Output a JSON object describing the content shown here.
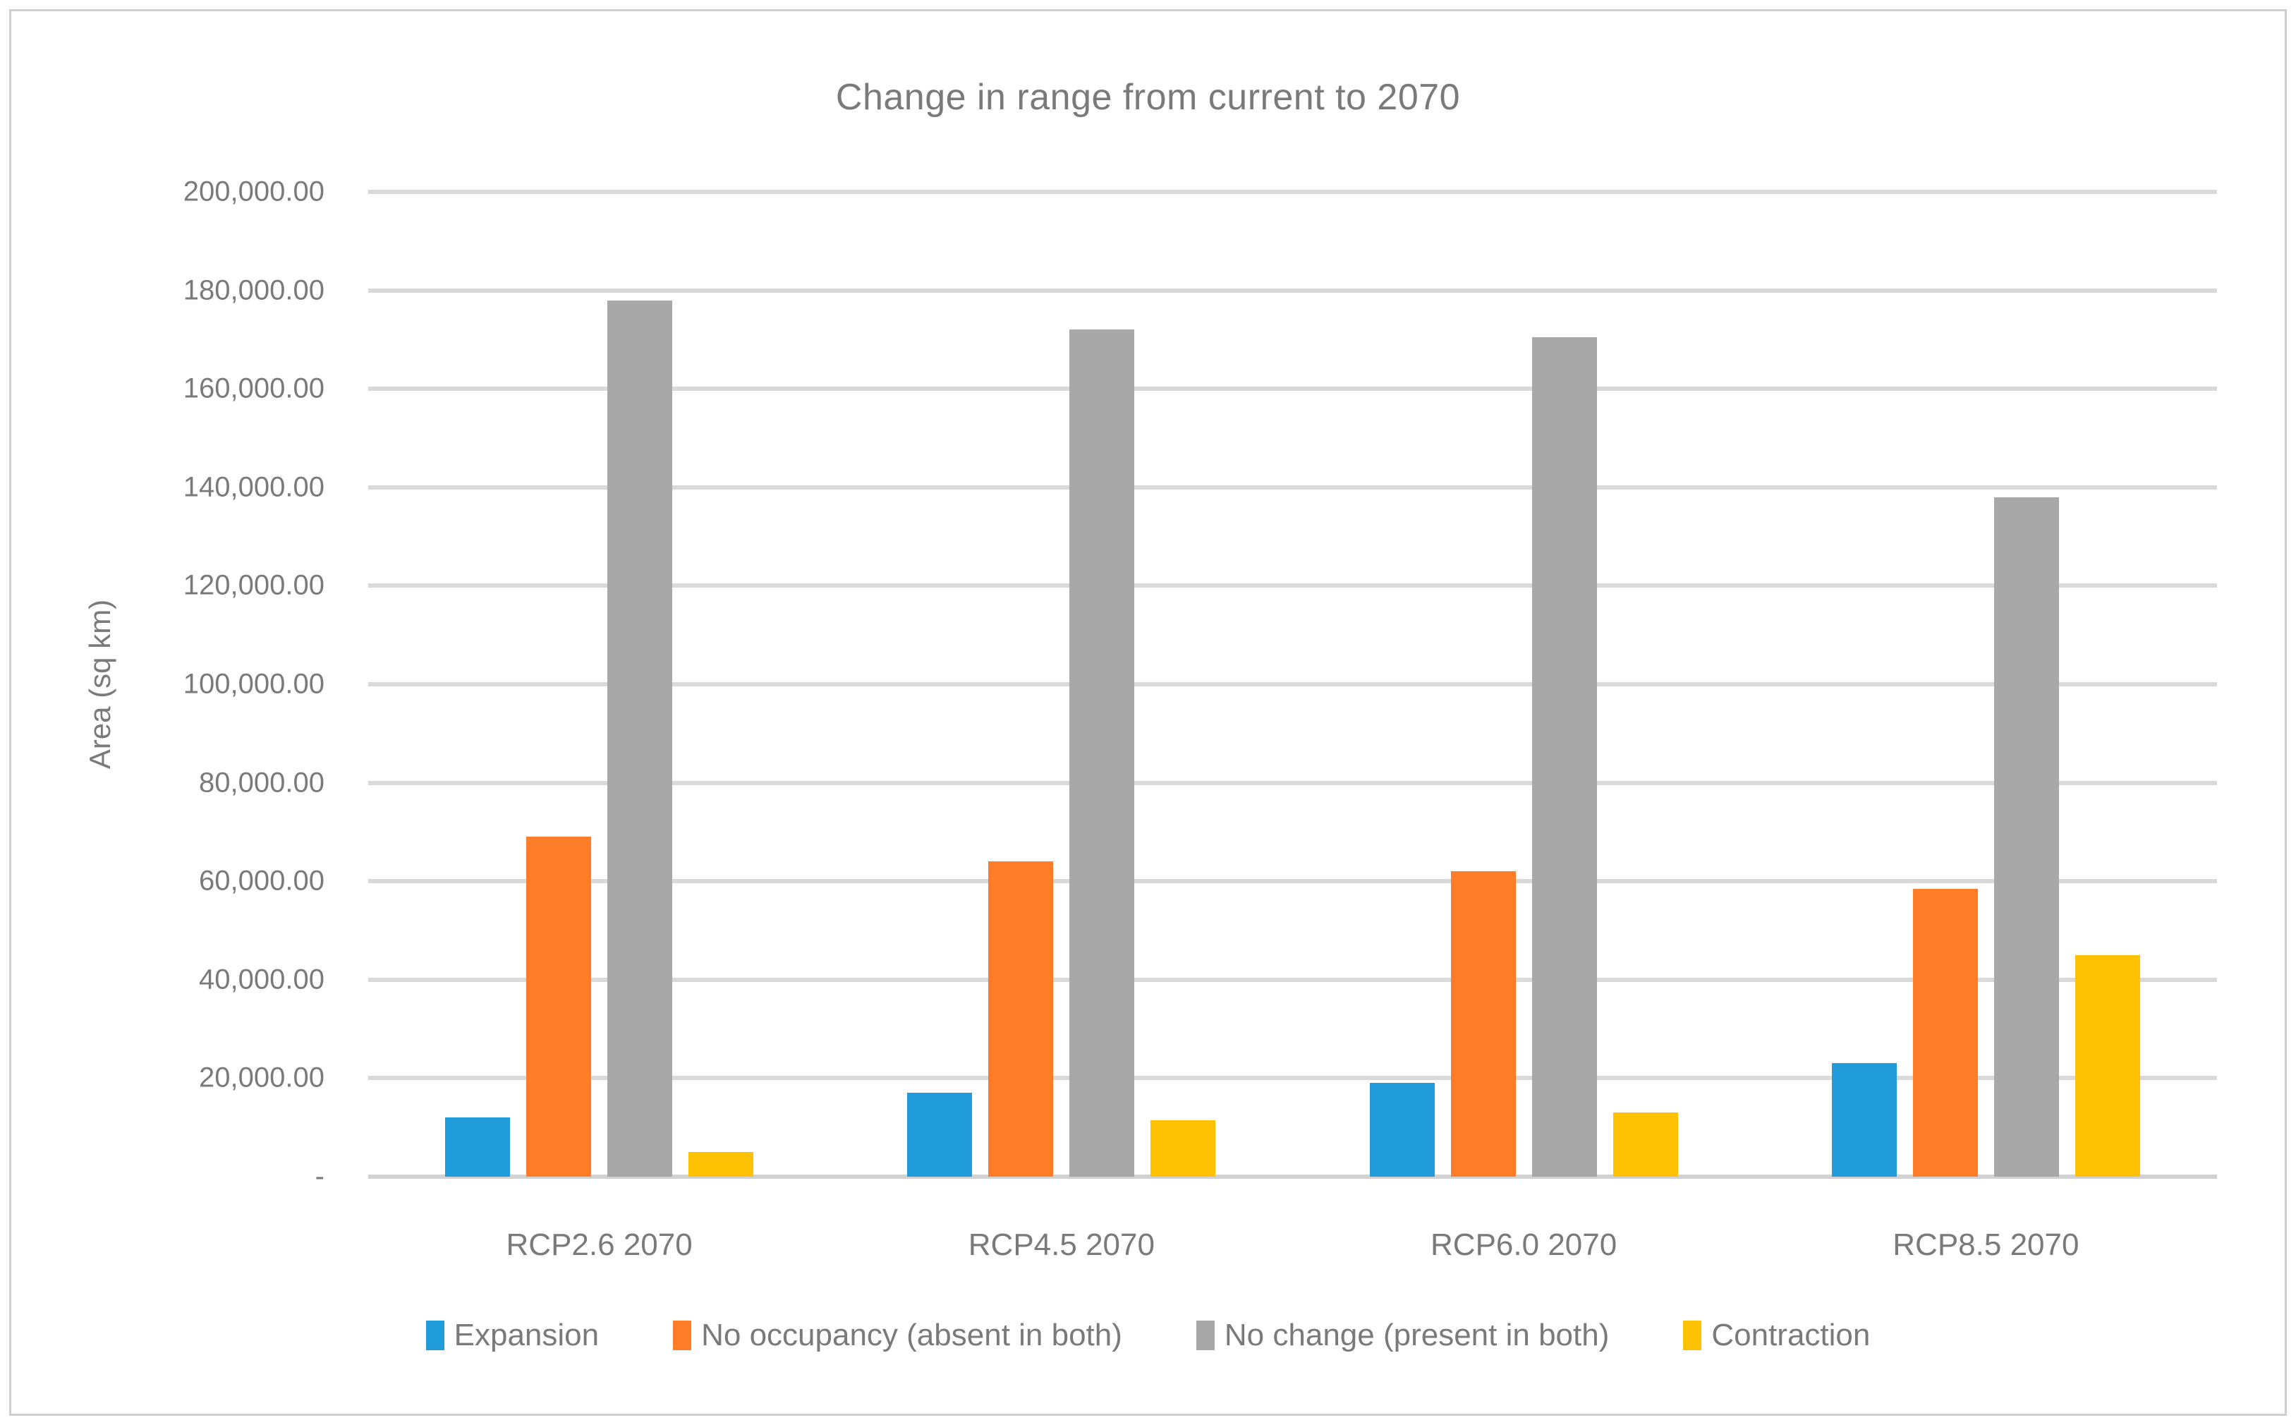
{
  "window": {
    "background": "#ffffff",
    "border_color": "#cfcfcf"
  },
  "colors": {
    "text": "#7a7a7a",
    "gridline": "#d9d9d9",
    "zero_axis": "#d2d2d2",
    "expansion_blue": "#1f9cd9",
    "no_occupancy_orange": "#ff7d28",
    "no_change_gray": "#a8a8a8",
    "contraction_yellow": "#ffc103"
  },
  "chart_data": {
    "type": "bar",
    "title": "Change in range from current to 2070",
    "xlabel": "",
    "ylabel": "Area (sq km)",
    "categories": [
      "RCP2.6 2070",
      "RCP4.5 2070",
      "RCP6.0 2070",
      "RCP8.5 2070"
    ],
    "series": [
      {
        "name": "Expansion",
        "color": "#1f9cd9",
        "values": [
          12000,
          17000,
          19000,
          23000
        ]
      },
      {
        "name": "No occupancy (absent in both)",
        "color": "#ff7d28",
        "values": [
          69000,
          64000,
          62000,
          58500
        ]
      },
      {
        "name": "No change (present in both)",
        "color": "#a8a8a8",
        "values": [
          178000,
          172000,
          170500,
          138000
        ]
      },
      {
        "name": "Contraction",
        "color": "#ffc103",
        "values": [
          5000,
          11500,
          13000,
          45000
        ]
      }
    ],
    "ylim": [
      0,
      200000
    ],
    "ytick_step": 20000,
    "ytick_labels": [
      "200,000.00",
      "180,000.00",
      "160,000.00",
      "140,000.00",
      "120,000.00",
      "100,000.00",
      "80,000.00",
      "60,000.00",
      "40,000.00",
      "20,000.00",
      "-"
    ],
    "grid": true,
    "legend_position": "bottom"
  }
}
